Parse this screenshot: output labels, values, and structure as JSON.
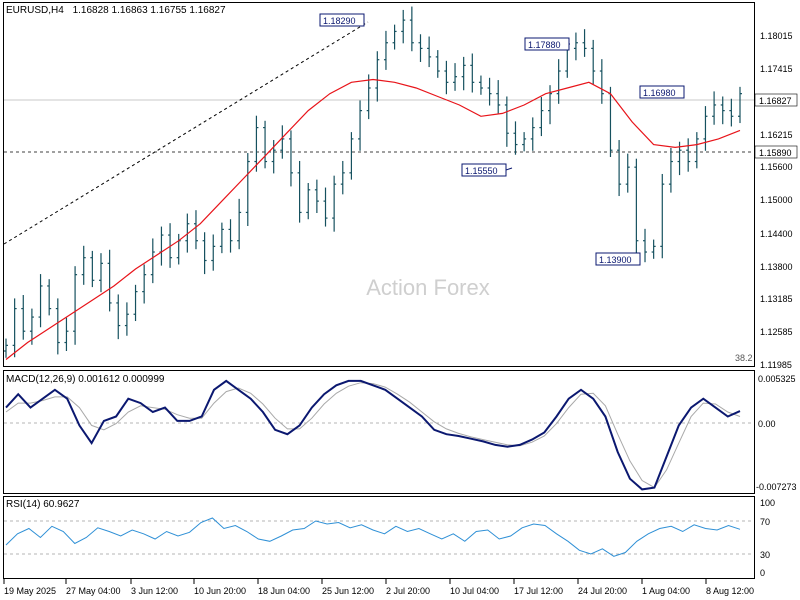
{
  "header": {
    "symbol": "EURUSD,H4",
    "ohlc": "1.16828 1.16863 1.16755 1.16827"
  },
  "watermark": "Action Forex",
  "colors": {
    "bar": "#16515f",
    "ma": "#e8141a",
    "macd": "#0b1870",
    "signal": "#a9a9a9",
    "rsi": "#2f90d6",
    "label_border": "#0b1870",
    "grid": "#b4b4b4",
    "price_line": "#c8c8c8"
  },
  "chart_data": [
    {
      "type": "ohlc",
      "title": "EURUSD,H4",
      "ylim": [
        1.11985,
        1.18385
      ],
      "price_ticks": [
        "1.18015",
        "1.17415",
        "1.16827",
        "1.16215",
        "1.15600",
        "1.15000",
        "1.14400",
        "1.13800",
        "1.13185",
        "1.12585",
        "1.11985"
      ],
      "x_labels": [
        "19 May 2025",
        "27 May 04:00",
        "3 Jun 12:00",
        "10 Jun 20:00",
        "18 Jun 04:00",
        "25 Jun 12:00",
        "2 Jul 20:00",
        "10 Jul 04:00",
        "17 Jul 12:00",
        "24 Jul 20:00",
        "1 Aug 04:00",
        "8 Aug 12:00"
      ],
      "bars_approx_close": [
        1.1235,
        1.13,
        1.126,
        1.1285,
        1.134,
        1.13,
        1.124,
        1.126,
        1.136,
        1.139,
        1.135,
        1.138,
        1.131,
        1.127,
        1.129,
        1.133,
        1.136,
        1.14,
        1.143,
        1.139,
        1.142,
        1.145,
        1.142,
        1.1385,
        1.141,
        1.144,
        1.142,
        1.147,
        1.156,
        1.162,
        1.156,
        1.158,
        1.16,
        1.154,
        1.147,
        1.151,
        1.149,
        1.146,
        1.152,
        1.154,
        1.16,
        1.165,
        1.169,
        1.174,
        1.177,
        1.179,
        1.181,
        1.177,
        1.176,
        1.1745,
        1.172,
        1.17,
        1.171,
        1.173,
        1.17,
        1.169,
        1.168,
        1.166,
        1.161,
        1.159,
        1.16,
        1.162,
        1.165,
        1.168,
        1.172,
        1.176,
        1.177,
        1.176,
        1.172,
        1.168,
        1.158,
        1.152,
        1.155,
        1.142,
        1.14,
        1.141,
        1.152,
        1.156,
        1.158,
        1.156,
        1.16,
        1.164,
        1.166,
        1.165,
        1.164,
        1.168
      ],
      "moving_average_approx": [
        1.121,
        1.124,
        1.1265,
        1.129,
        1.1315,
        1.134,
        1.137,
        1.1395,
        1.142,
        1.145,
        1.149,
        1.153,
        1.157,
        1.161,
        1.165,
        1.168,
        1.17,
        1.1705,
        1.17,
        1.169,
        1.1675,
        1.166,
        1.164,
        1.1645,
        1.166,
        1.168,
        1.169,
        1.17,
        1.168,
        1.163,
        1.159,
        1.1585,
        1.159,
        1.16,
        1.1615
      ],
      "annotations": [
        {
          "label": "1.18290",
          "price": 1.1829
        },
        {
          "label": "1.17880",
          "price": 1.1788
        },
        {
          "label": "1.16980",
          "price": 1.1698
        },
        {
          "label": "1.15550",
          "price": 1.1555
        },
        {
          "label": "1.13900",
          "price": 1.139
        }
      ],
      "current_price_label": "1.16827",
      "horizontal_level_label": "1.15890",
      "fib_label": "38.2"
    },
    {
      "type": "line",
      "title": "MACD(12,26,9) 0.001612 0.000999",
      "ylim": [
        -0.00727,
        0.005325
      ],
      "y_ticks": [
        "0.005325",
        "0.00",
        "-0.007273"
      ],
      "series": [
        {
          "values": [
            0.002,
            0.0035,
            0.002,
            0.003,
            0.004,
            0.003,
            0.0,
            -0.002,
            0.0005,
            0.001,
            0.003,
            0.0025,
            0.0015,
            0.002,
            0.0005,
            0.0005,
            0.001,
            0.004,
            0.005,
            0.004,
            0.003,
            0.0015,
            -0.0005,
            -0.001,
            0.0,
            0.002,
            0.0035,
            0.0045,
            0.005,
            0.005,
            0.0045,
            0.004,
            0.003,
            0.002,
            0.001,
            -0.0005,
            -0.001,
            -0.0012,
            -0.0015,
            -0.0018,
            -0.0022,
            -0.0024,
            -0.0022,
            -0.0016,
            -0.0008,
            0.001,
            0.003,
            0.004,
            0.003,
            0.001,
            -0.003,
            -0.006,
            -0.0072,
            -0.007,
            -0.0035,
            0.0,
            0.002,
            0.003,
            0.002,
            0.001,
            0.0016
          ]
        },
        {
          "values": [
            0.0015,
            0.0025,
            0.0025,
            0.0028,
            0.0032,
            0.0032,
            0.002,
            0.0,
            -0.0005,
            0.0002,
            0.0015,
            0.0022,
            0.002,
            0.0018,
            0.0012,
            0.0008,
            0.0008,
            0.0025,
            0.0038,
            0.0042,
            0.0036,
            0.0024,
            0.0008,
            -0.0004,
            -0.0004,
            0.0008,
            0.0024,
            0.0036,
            0.0044,
            0.0048,
            0.0047,
            0.0043,
            0.0035,
            0.0026,
            0.0015,
            0.0004,
            -0.0004,
            -0.0009,
            -0.0013,
            -0.0016,
            -0.0019,
            -0.0022,
            -0.0023,
            -0.0019,
            -0.0012,
            0.0002,
            0.002,
            0.0035,
            0.0036,
            0.0022,
            -0.001,
            -0.004,
            -0.0062,
            -0.007,
            -0.005,
            -0.002,
            0.001,
            0.0025,
            0.0024,
            0.0015,
            0.001
          ]
        }
      ]
    },
    {
      "type": "line",
      "title": "RSI(14) 60.9627",
      "ylim": [
        0,
        100
      ],
      "y_ticks": [
        "100",
        "70",
        "30",
        "0"
      ],
      "levels": [
        70,
        30
      ],
      "series": [
        {
          "values": [
            40,
            55,
            62,
            50,
            65,
            58,
            42,
            50,
            63,
            58,
            52,
            60,
            55,
            48,
            58,
            52,
            57,
            70,
            76,
            62,
            66,
            58,
            48,
            45,
            52,
            60,
            62,
            72,
            68,
            70,
            63,
            67,
            60,
            55,
            65,
            58,
            62,
            55,
            48,
            55,
            45,
            58,
            60,
            48,
            52,
            63,
            68,
            66,
            55,
            45,
            33,
            28,
            35,
            25,
            30,
            45,
            55,
            62,
            65,
            58,
            67,
            62,
            60,
            66,
            61
          ]
        }
      ]
    }
  ]
}
